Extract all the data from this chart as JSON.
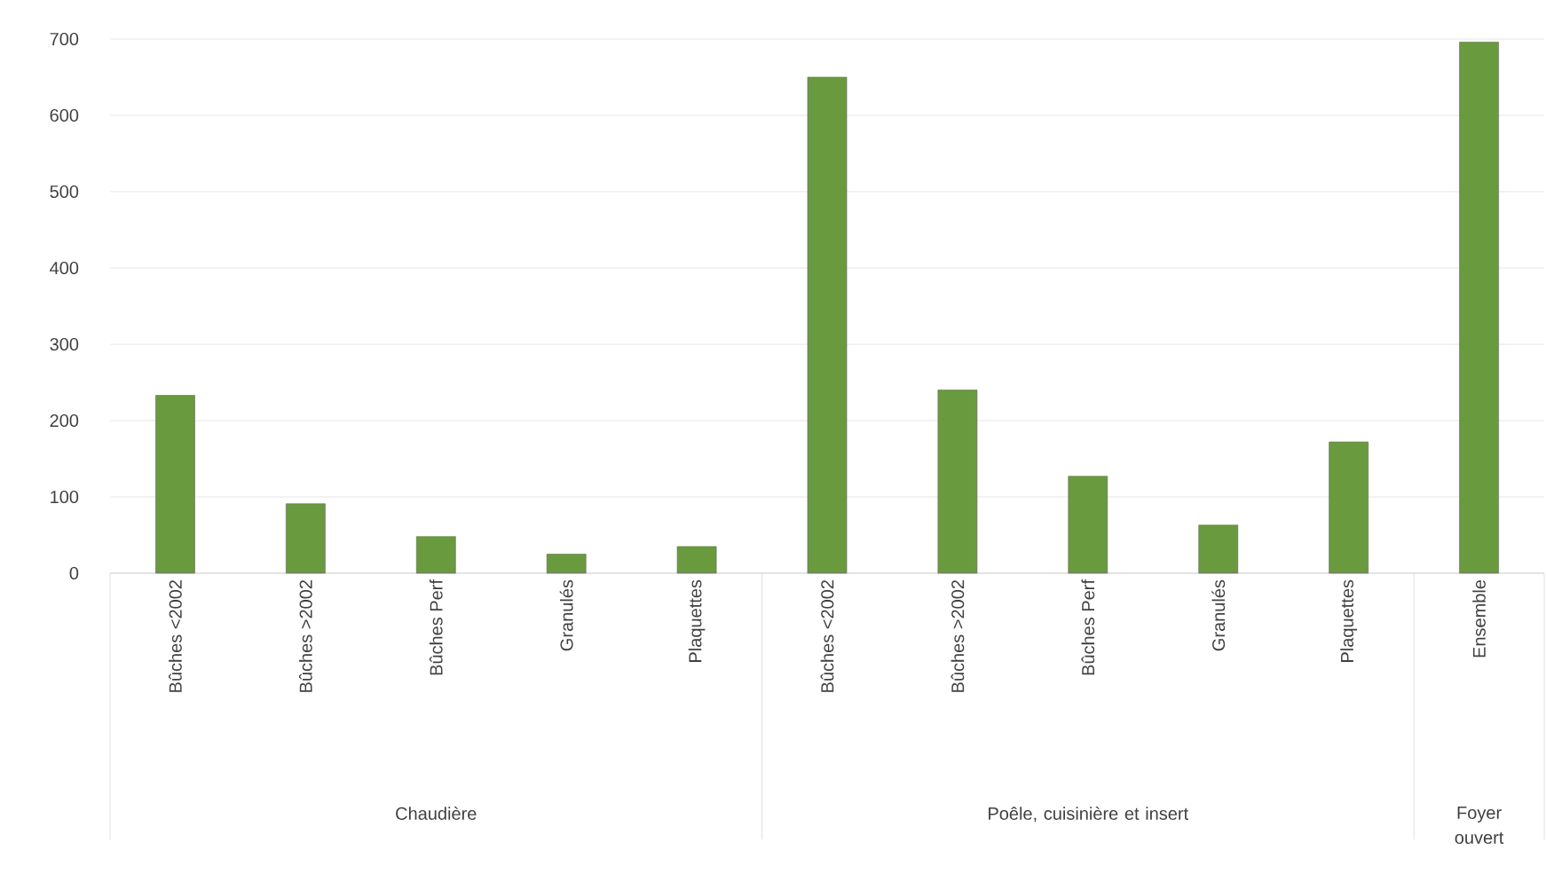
{
  "chart_data": {
    "type": "bar",
    "categories": [
      "Bûches <2002",
      "Bûches >2002",
      "Bûches Perf",
      "Granulés",
      "Plaquettes",
      "Bûches <2002",
      "Bûches >2002",
      "Bûches Perf",
      "Granulés",
      "Plaquettes",
      "Ensemble"
    ],
    "values": [
      233,
      91,
      48,
      25,
      35,
      650,
      240,
      127,
      63,
      172,
      696
    ],
    "color": "#6a9a3e",
    "ylim": [
      0,
      700
    ],
    "yticks": [
      0,
      100,
      200,
      300,
      400,
      500,
      600,
      700
    ],
    "grid": "y",
    "annotations": [
      "Chaudière",
      "Poêle, cuisinière et insert",
      "Foyer ouvert"
    ]
  }
}
